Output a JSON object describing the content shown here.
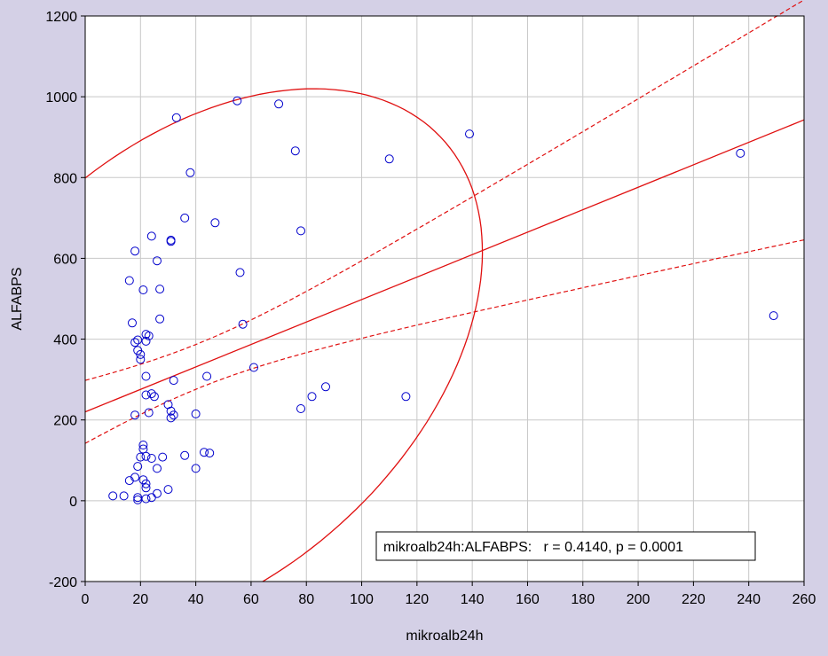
{
  "colors": {
    "background": "#d4d0e6",
    "plot_bg": "#ffffff",
    "points": "#0000cc",
    "fit_lines": "#e01010",
    "grid": "#c8c8c8"
  },
  "chart_data": {
    "type": "scatter",
    "xlabel": "mikroalb24h",
    "ylabel": "ALFABPS",
    "xlim": [
      0,
      260
    ],
    "ylim": [
      -200,
      1200
    ],
    "xticks": [
      "0",
      "20",
      "40",
      "60",
      "80",
      "100",
      "120",
      "140",
      "160",
      "180",
      "200",
      "220",
      "240",
      "260"
    ],
    "yticks": [
      "-200",
      "0",
      "200",
      "400",
      "600",
      "800",
      "1000",
      "1200"
    ],
    "grid": true,
    "annotation": "mikroalb24h:ALFABPS:   r = 0.4140, p = 0.0001",
    "annotation_position": "bottom-right",
    "regression": {
      "intercept": 220,
      "slope": 2.78
    },
    "confidence_band": "dashed",
    "ellipse": "solid",
    "points": [
      [
        33,
        948
      ],
      [
        55,
        990
      ],
      [
        70,
        982
      ],
      [
        76,
        866
      ],
      [
        110,
        846
      ],
      [
        139,
        908
      ],
      [
        237,
        860
      ],
      [
        38,
        812
      ],
      [
        36,
        700
      ],
      [
        47,
        688
      ],
      [
        24,
        655
      ],
      [
        31,
        645
      ],
      [
        31,
        642
      ],
      [
        78,
        668
      ],
      [
        18,
        618
      ],
      [
        26,
        594
      ],
      [
        16,
        545
      ],
      [
        27,
        524
      ],
      [
        21,
        522
      ],
      [
        56,
        565
      ],
      [
        17,
        440
      ],
      [
        27,
        450
      ],
      [
        57,
        437
      ],
      [
        22,
        412
      ],
      [
        23,
        408
      ],
      [
        22,
        395
      ],
      [
        18,
        392
      ],
      [
        19,
        398
      ],
      [
        19,
        372
      ],
      [
        20,
        362
      ],
      [
        20,
        350
      ],
      [
        22,
        308
      ],
      [
        32,
        298
      ],
      [
        61,
        330
      ],
      [
        44,
        308
      ],
      [
        22,
        262
      ],
      [
        24,
        265
      ],
      [
        25,
        258
      ],
      [
        30,
        238
      ],
      [
        31,
        222
      ],
      [
        31,
        205
      ],
      [
        32,
        212
      ],
      [
        40,
        215
      ],
      [
        23,
        218
      ],
      [
        18,
        212
      ],
      [
        78,
        228
      ],
      [
        82,
        258
      ],
      [
        87,
        282
      ],
      [
        116,
        258
      ],
      [
        21,
        138
      ],
      [
        21,
        128
      ],
      [
        20,
        108
      ],
      [
        22,
        110
      ],
      [
        24,
        105
      ],
      [
        28,
        108
      ],
      [
        43,
        120
      ],
      [
        45,
        118
      ],
      [
        36,
        112
      ],
      [
        19,
        85
      ],
      [
        26,
        80
      ],
      [
        40,
        80
      ],
      [
        21,
        52
      ],
      [
        22,
        42
      ],
      [
        22,
        32
      ],
      [
        18,
        58
      ],
      [
        16,
        50
      ],
      [
        10,
        12
      ],
      [
        14,
        12
      ],
      [
        19,
        8
      ],
      [
        19,
        2
      ],
      [
        22,
        5
      ],
      [
        24,
        8
      ],
      [
        26,
        18
      ],
      [
        30,
        28
      ],
      [
        249,
        458
      ]
    ]
  }
}
